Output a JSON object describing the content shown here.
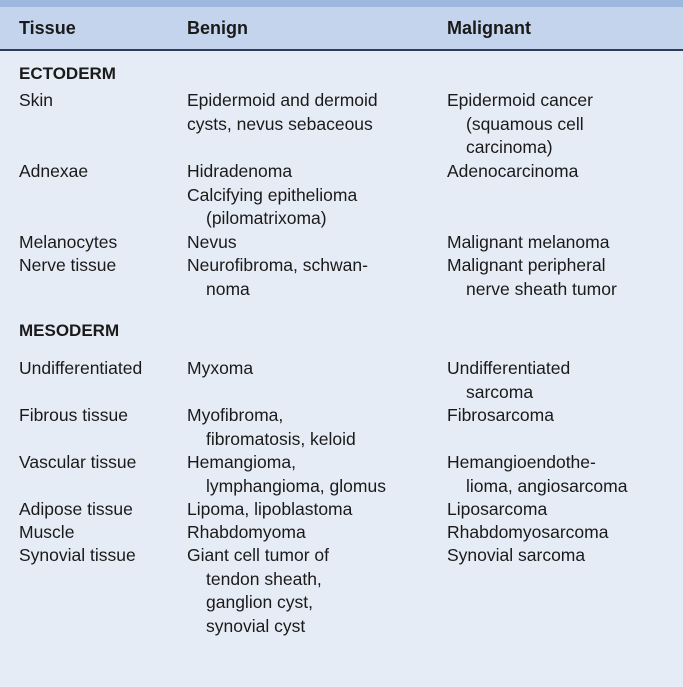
{
  "headers": {
    "tissue": "Tissue",
    "benign": "Benign",
    "malignant": "Malignant"
  },
  "sections": {
    "ectoderm": "ECTODERM",
    "mesoderm": "MESODERM"
  },
  "rows": {
    "skin": {
      "tissue": [
        "Skin"
      ],
      "benign": [
        "Epidermoid and dermoid",
        "cysts, nevus sebaceous"
      ],
      "malignant": [
        "Epidermoid cancer",
        "(squamous cell",
        "carcinoma)"
      ]
    },
    "adnexae": {
      "tissue": [
        "Adnexae"
      ],
      "benign": [
        "Hidradenoma",
        "Calcifying epithelioma",
        "(pilomatrixoma)"
      ],
      "malignant": [
        "Adenocarcinoma"
      ]
    },
    "melanocytes": {
      "tissue": [
        "Melanocytes"
      ],
      "benign": [
        "Nevus"
      ],
      "malignant": [
        "Malignant melanoma"
      ]
    },
    "nerve": {
      "tissue": [
        "Nerve tissue"
      ],
      "benign": [
        "Neurofibroma, schwan-",
        "noma"
      ],
      "malignant": [
        "Malignant peripheral",
        "nerve sheath tumor"
      ]
    },
    "undiff": {
      "tissue": [
        "Undifferentiated"
      ],
      "benign": [
        "Myxoma"
      ],
      "malignant": [
        "Undifferentiated",
        "sarcoma"
      ]
    },
    "fibrous": {
      "tissue": [
        "Fibrous tissue"
      ],
      "benign": [
        "Myofibroma,",
        "fibromatosis, keloid"
      ],
      "malignant": [
        "Fibrosarcoma"
      ]
    },
    "vascular": {
      "tissue": [
        "Vascular tissue"
      ],
      "benign": [
        "Hemangioma,",
        "lymphangioma, glomus"
      ],
      "malignant": [
        "Hemangioendothe-",
        "lioma, angiosarcoma"
      ]
    },
    "adipose": {
      "tissue": [
        "Adipose tissue"
      ],
      "benign": [
        "Lipoma, lipoblastoma"
      ],
      "malignant": [
        "Liposarcoma"
      ]
    },
    "muscle": {
      "tissue": [
        "Muscle"
      ],
      "benign": [
        "Rhabdomyoma"
      ],
      "malignant": [
        "Rhabdomyosarcoma"
      ]
    },
    "synovial": {
      "tissue": [
        "Synovial tissue"
      ],
      "benign": [
        "Giant cell tumor of",
        "tendon sheath,",
        "ganglion cyst,",
        "synovial cyst"
      ],
      "malignant": [
        "Synovial sarcoma"
      ]
    }
  }
}
